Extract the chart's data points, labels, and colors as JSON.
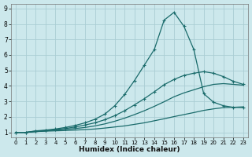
{
  "xlabel": "Humidex (Indice chaleur)",
  "ylabel": "",
  "bg_color": "#cce8ec",
  "grid_color": "#aacdd4",
  "line_color": "#1a6b6b",
  "xlim": [
    -0.5,
    23.5
  ],
  "ylim": [
    0.7,
    9.3
  ],
  "xticks": [
    0,
    1,
    2,
    3,
    4,
    5,
    6,
    7,
    8,
    9,
    10,
    11,
    12,
    13,
    14,
    15,
    16,
    17,
    18,
    19,
    20,
    21,
    22,
    23
  ],
  "yticks": [
    1,
    2,
    3,
    4,
    5,
    6,
    7,
    8,
    9
  ],
  "lines": [
    {
      "x": [
        0,
        1,
        2,
        3,
        4,
        5,
        6,
        7,
        8,
        9,
        10,
        11,
        12,
        13,
        14,
        15,
        16,
        17,
        18,
        19,
        20,
        21,
        22,
        23
      ],
      "y": [
        1.0,
        1.0,
        1.05,
        1.08,
        1.1,
        1.12,
        1.15,
        1.18,
        1.22,
        1.28,
        1.35,
        1.42,
        1.52,
        1.62,
        1.75,
        1.88,
        2.02,
        2.15,
        2.28,
        2.42,
        2.52,
        2.6,
        2.62,
        2.65
      ],
      "marker": false
    },
    {
      "x": [
        0,
        1,
        2,
        3,
        4,
        5,
        6,
        7,
        8,
        9,
        10,
        11,
        12,
        13,
        14,
        15,
        16,
        17,
        18,
        19,
        20,
        21,
        22,
        23
      ],
      "y": [
        1.0,
        1.0,
        1.05,
        1.1,
        1.15,
        1.2,
        1.25,
        1.32,
        1.42,
        1.55,
        1.72,
        1.92,
        2.15,
        2.4,
        2.68,
        2.98,
        3.3,
        3.55,
        3.75,
        3.95,
        4.1,
        4.15,
        4.1,
        4.05
      ],
      "marker": false
    },
    {
      "x": [
        0,
        1,
        2,
        3,
        4,
        5,
        6,
        7,
        8,
        9,
        10,
        11,
        12,
        13,
        14,
        15,
        16,
        17,
        18,
        19,
        20,
        21,
        22,
        23
      ],
      "y": [
        1.0,
        1.0,
        1.08,
        1.12,
        1.18,
        1.25,
        1.35,
        1.48,
        1.62,
        1.82,
        2.08,
        2.4,
        2.78,
        3.18,
        3.62,
        4.08,
        4.42,
        4.68,
        4.82,
        4.92,
        4.82,
        4.6,
        4.3,
        4.1
      ],
      "marker": true
    },
    {
      "x": [
        0,
        1,
        2,
        3,
        4,
        5,
        6,
        7,
        8,
        9,
        10,
        11,
        12,
        13,
        14,
        15,
        16,
        17,
        18,
        19,
        20,
        21,
        22,
        23
      ],
      "y": [
        1.0,
        1.0,
        1.1,
        1.15,
        1.22,
        1.32,
        1.45,
        1.62,
        1.85,
        2.18,
        2.72,
        3.45,
        4.35,
        5.35,
        6.35,
        8.25,
        8.75,
        7.85,
        6.35,
        3.5,
        2.95,
        2.72,
        2.62,
        2.6
      ],
      "marker": true
    }
  ]
}
